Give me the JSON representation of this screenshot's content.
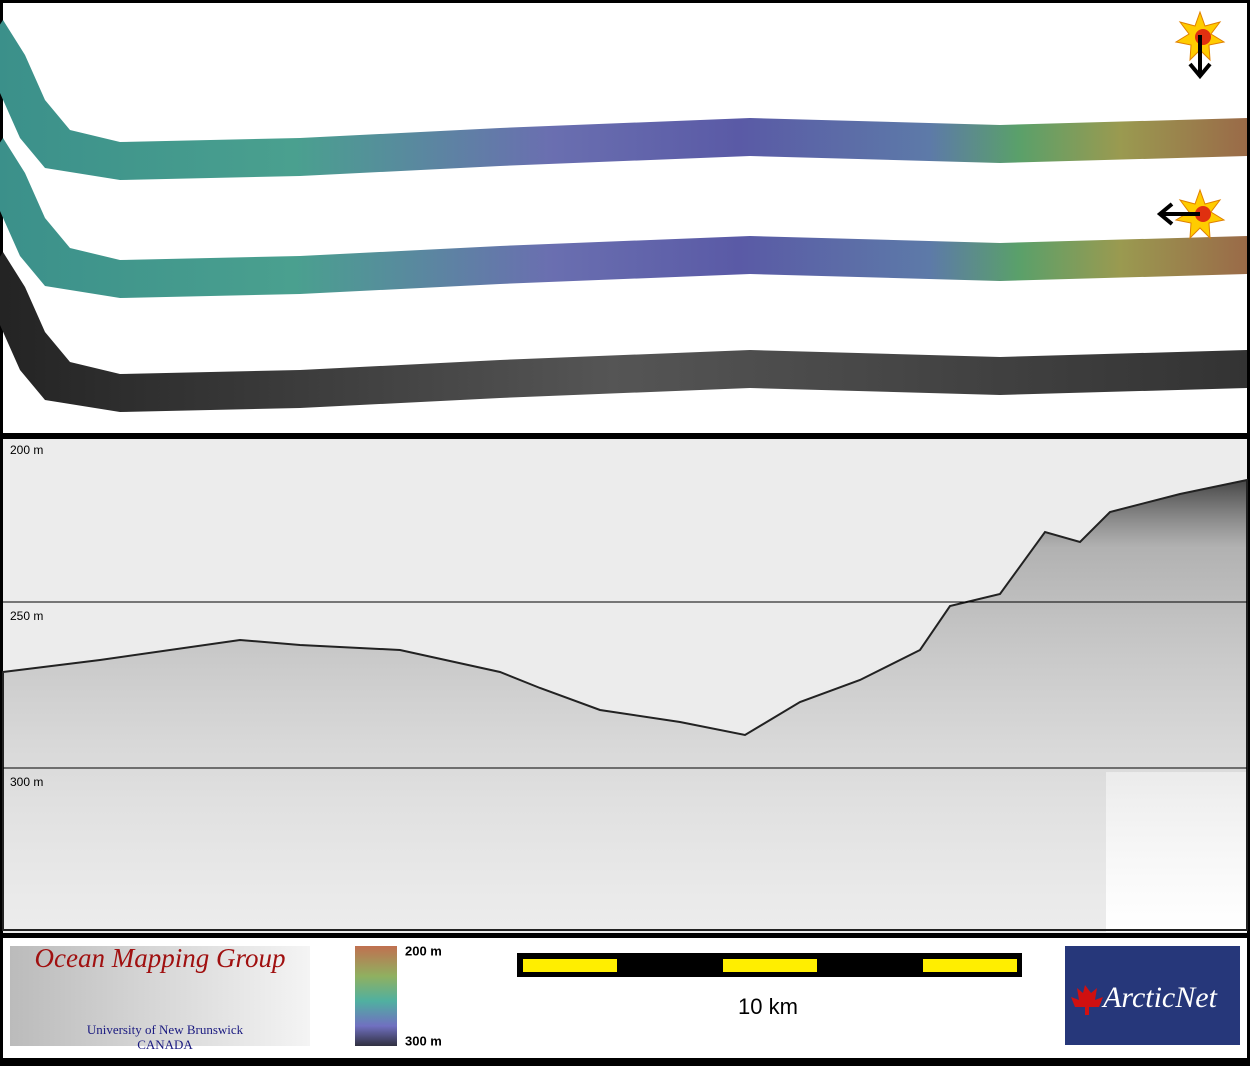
{
  "profile": {
    "depth_labels": [
      "200 m",
      "250 m",
      "300 m"
    ]
  },
  "footer": {
    "logo_title": "Ocean Mapping Group",
    "logo_subtitle": "University of New Brunswick",
    "logo_country": "CANADA",
    "colorbar_top": "200 m",
    "colorbar_bottom": "300 m",
    "scale_label": "10 km",
    "partner_logo": "ArcticNet"
  }
}
